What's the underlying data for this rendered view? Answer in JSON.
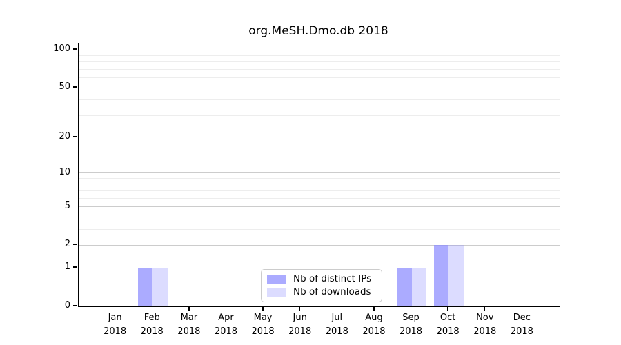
{
  "chart_data": {
    "type": "bar",
    "title": "org.MeSH.Dmo.db 2018",
    "categories": [
      "Jan 2018",
      "Feb 2018",
      "Mar 2018",
      "Apr 2018",
      "May 2018",
      "Jun 2018",
      "Jul 2018",
      "Aug 2018",
      "Sep 2018",
      "Oct 2018",
      "Nov 2018",
      "Dec 2018"
    ],
    "series": [
      {
        "name": "Nb of distinct IPs",
        "color": "#8888ffb3",
        "values": [
          0,
          1,
          0,
          0,
          0,
          0,
          0,
          0,
          1,
          2,
          0,
          0
        ]
      },
      {
        "name": "Nb of downloads",
        "color": "#8888ff4a",
        "values": [
          0,
          1,
          0,
          0,
          0,
          0,
          0,
          0,
          1,
          2,
          0,
          0
        ]
      }
    ],
    "xlabel": "",
    "ylabel": "",
    "y_scale": "log1p",
    "y_ticks": [
      0,
      1,
      2,
      5,
      10,
      20,
      50,
      100
    ],
    "y_minor_ticks": [
      3,
      4,
      6,
      7,
      8,
      9,
      30,
      40,
      60,
      70,
      80,
      90
    ],
    "ylim": [
      0,
      112
    ],
    "grid": "horizontal",
    "grid_colors": {
      "major": "#cccccc",
      "minor": "#ededed"
    },
    "axis_color": "#000000",
    "background": "#ffffff",
    "legend_position": "inside-bottom-center"
  }
}
